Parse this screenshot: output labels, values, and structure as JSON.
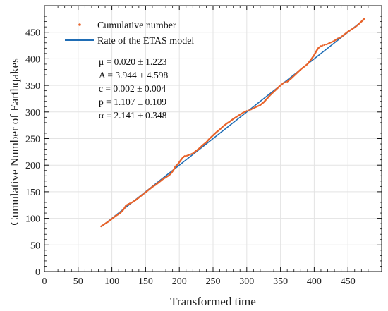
{
  "chart_data": {
    "type": "scatter",
    "xlabel": "Transformed time",
    "ylabel": "Cumulative Number of Earthqakes",
    "xlim": [
      0,
      500
    ],
    "ylim": [
      0,
      500
    ],
    "xticks": [
      "0",
      "50",
      "100",
      "150",
      "200",
      "250",
      "300",
      "350",
      "400",
      "450"
    ],
    "yticks": [
      "0",
      "50",
      "100",
      "150",
      "200",
      "250",
      "300",
      "350",
      "400",
      "450"
    ],
    "grid": true,
    "legend_position": "top-left",
    "series": [
      {
        "name": "Cumulative number",
        "kind": "scatter",
        "color": "#e8632a",
        "points": [
          [
            84,
            85
          ],
          [
            90,
            90
          ],
          [
            95,
            94
          ],
          [
            100,
            99
          ],
          [
            105,
            104
          ],
          [
            110,
            108
          ],
          [
            115,
            113
          ],
          [
            118,
            118
          ],
          [
            121,
            124
          ],
          [
            125,
            127
          ],
          [
            130,
            130
          ],
          [
            135,
            134
          ],
          [
            140,
            139
          ],
          [
            145,
            144
          ],
          [
            150,
            149
          ],
          [
            155,
            154
          ],
          [
            160,
            159
          ],
          [
            165,
            163
          ],
          [
            170,
            168
          ],
          [
            175,
            173
          ],
          [
            180,
            177
          ],
          [
            185,
            181
          ],
          [
            188,
            185
          ],
          [
            191,
            190
          ],
          [
            194,
            197
          ],
          [
            198,
            202
          ],
          [
            202,
            209
          ],
          [
            205,
            214
          ],
          [
            208,
            217
          ],
          [
            212,
            218
          ],
          [
            216,
            220
          ],
          [
            220,
            222
          ],
          [
            225,
            227
          ],
          [
            230,
            232
          ],
          [
            235,
            238
          ],
          [
            240,
            243
          ],
          [
            245,
            250
          ],
          [
            250,
            256
          ],
          [
            255,
            262
          ],
          [
            260,
            267
          ],
          [
            265,
            273
          ],
          [
            270,
            278
          ],
          [
            275,
            282
          ],
          [
            280,
            287
          ],
          [
            285,
            291
          ],
          [
            290,
            295
          ],
          [
            295,
            299
          ],
          [
            300,
            302
          ],
          [
            305,
            304
          ],
          [
            310,
            307
          ],
          [
            315,
            310
          ],
          [
            320,
            313
          ],
          [
            325,
            318
          ],
          [
            330,
            325
          ],
          [
            335,
            332
          ],
          [
            340,
            338
          ],
          [
            345,
            344
          ],
          [
            350,
            350
          ],
          [
            355,
            355
          ],
          [
            360,
            357
          ],
          [
            365,
            362
          ],
          [
            370,
            368
          ],
          [
            375,
            374
          ],
          [
            380,
            380
          ],
          [
            385,
            385
          ],
          [
            390,
            390
          ],
          [
            395,
            398
          ],
          [
            400,
            407
          ],
          [
            403,
            414
          ],
          [
            406,
            420
          ],
          [
            410,
            424
          ],
          [
            415,
            426
          ],
          [
            420,
            428
          ],
          [
            425,
            431
          ],
          [
            430,
            434
          ],
          [
            435,
            438
          ],
          [
            440,
            441
          ],
          [
            445,
            446
          ],
          [
            450,
            451
          ],
          [
            455,
            455
          ],
          [
            460,
            459
          ],
          [
            465,
            464
          ],
          [
            470,
            470
          ],
          [
            474,
            475
          ]
        ]
      },
      {
        "name": "Rate of the ETAS model",
        "kind": "line",
        "color": "#1f6db5",
        "points": [
          [
            84,
            84
          ],
          [
            474,
            474
          ]
        ]
      }
    ],
    "annotations": [
      "μ = 0.020 ± 1.223",
      "A = 3.944 ± 4.598",
      "c = 0.002 ± 0.004",
      "p = 1.107 ± 0.109",
      "α = 2.141 ± 0.348"
    ]
  }
}
